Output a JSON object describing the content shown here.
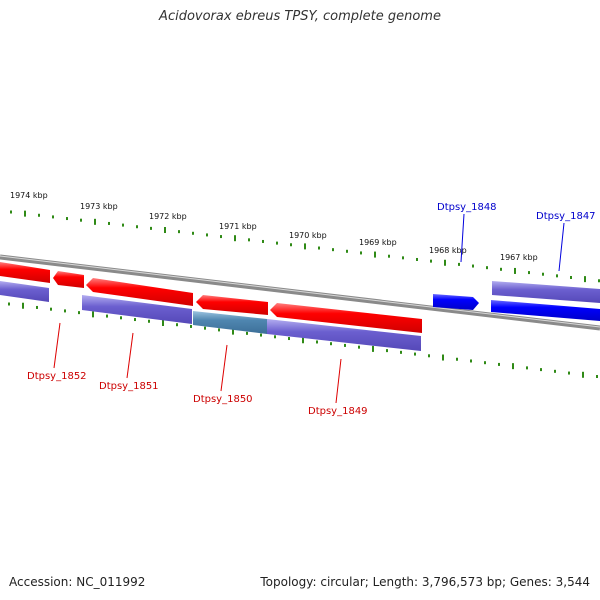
{
  "title": "Acidovorax ebreus TPSY, complete genome",
  "footer": {
    "accession": "Accession: NC_011992",
    "summary": "Topology: circular; Length: 3,796,573 bp; Genes: 3,544"
  },
  "colors": {
    "reverse_gene": "#ff0000",
    "forward_gene": "#0000ff",
    "cog_band": "#6b5fcf",
    "cog_band_alt": "#4f86b0",
    "backbone": "#888888",
    "tick": "#2f8a16"
  },
  "scale": {
    "unit": "kbp",
    "labels": [
      "1974 kbp",
      "1973 kbp",
      "1972 kbp",
      "1971 kbp",
      "1970 kbp",
      "1969 kbp",
      "1968 kbp",
      "1967 kbp"
    ]
  },
  "genes": [
    {
      "name": "Dtpsy_1852",
      "strand": "reverse"
    },
    {
      "name": "Dtpsy_1851",
      "strand": "reverse"
    },
    {
      "name": "Dtpsy_1850",
      "strand": "reverse"
    },
    {
      "name": "Dtpsy_1849",
      "strand": "reverse"
    },
    {
      "name": "Dtpsy_1848",
      "strand": "forward"
    },
    {
      "name": "Dtpsy_1847",
      "strand": "forward"
    }
  ]
}
